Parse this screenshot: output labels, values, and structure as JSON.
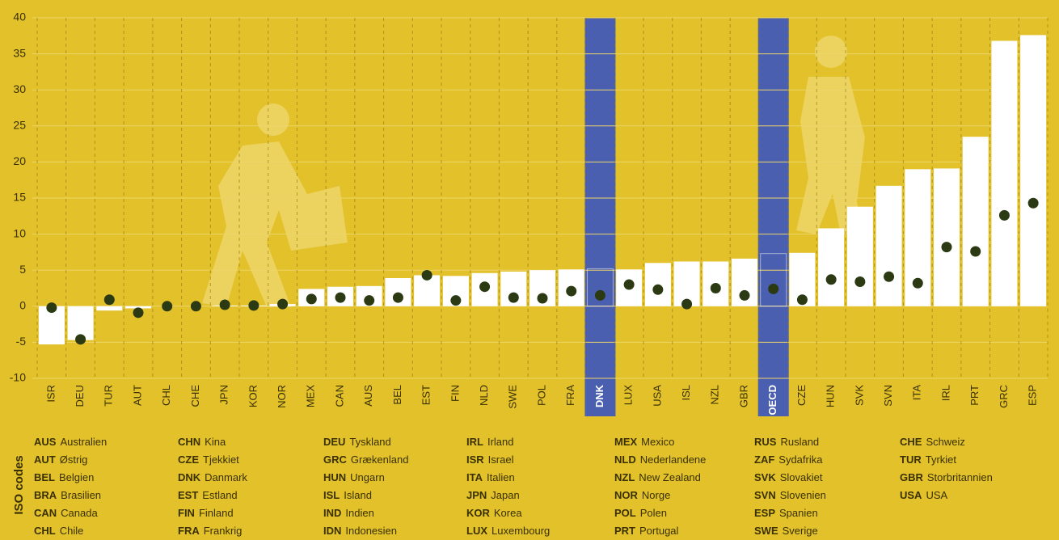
{
  "chart_data": {
    "type": "bar",
    "categories": [
      "ISR",
      "DEU",
      "TUR",
      "AUT",
      "CHL",
      "CHE",
      "JPN",
      "KOR",
      "NOR",
      "MEX",
      "CAN",
      "AUS",
      "BEL",
      "EST",
      "FIN",
      "NLD",
      "SWE",
      "POL",
      "FRA",
      "DNK",
      "LUX",
      "USA",
      "ISL",
      "NZL",
      "GBR",
      "OECD",
      "CZE",
      "HUN",
      "SVK",
      "SVN",
      "ITA",
      "IRL",
      "PRT",
      "GRC",
      "ESP"
    ],
    "series": [
      {
        "type": "bar",
        "color": "#ffffff",
        "values": [
          -5.3,
          -4.7,
          -0.6,
          -0.3,
          0,
          0,
          0.1,
          0.1,
          0.3,
          2.4,
          2.7,
          2.8,
          3.9,
          4.3,
          4.2,
          4.6,
          4.8,
          5.0,
          5.1,
          5.2,
          5.1,
          6.0,
          6.2,
          6.2,
          6.6,
          7.3,
          7.4,
          10.8,
          13.8,
          16.7,
          19.0,
          19.1,
          23.5,
          36.8,
          37.6
        ]
      },
      {
        "type": "dot",
        "color": "#2b3a12",
        "values": [
          -0.2,
          -4.6,
          0.9,
          -0.9,
          0,
          0,
          0.2,
          0.1,
          0.3,
          1.0,
          1.2,
          0.8,
          1.2,
          4.3,
          0.8,
          2.7,
          1.2,
          1.1,
          2.1,
          1.5,
          3.0,
          2.3,
          0.3,
          2.5,
          1.5,
          2.4,
          0.9,
          3.7,
          3.4,
          4.1,
          3.2,
          8.2,
          7.6,
          12.6,
          14.3
        ]
      }
    ],
    "highlighted": [
      "DNK",
      "OECD"
    ],
    "highlight_color": "#4a5fb0",
    "ylim": [
      -10,
      40
    ],
    "yticks": [
      -10,
      -5,
      0,
      5,
      10,
      15,
      20,
      25,
      30,
      35,
      40
    ],
    "grid": true
  },
  "iso_codes": {
    "title": "ISO codes",
    "columns": [
      [
        {
          "code": "AUS",
          "name": "Australien"
        },
        {
          "code": "AUT",
          "name": "Østrig"
        },
        {
          "code": "BEL",
          "name": "Belgien"
        },
        {
          "code": "BRA",
          "name": "Brasilien"
        },
        {
          "code": "CAN",
          "name": "Canada"
        },
        {
          "code": "CHL",
          "name": "Chile"
        }
      ],
      [
        {
          "code": "CHN",
          "name": "Kina"
        },
        {
          "code": "CZE",
          "name": "Tjekkiet"
        },
        {
          "code": "DNK",
          "name": "Danmark"
        },
        {
          "code": "EST",
          "name": "Estland"
        },
        {
          "code": "FIN",
          "name": "Finland"
        },
        {
          "code": "FRA",
          "name": "Frankrig"
        }
      ],
      [
        {
          "code": "DEU",
          "name": "Tyskland"
        },
        {
          "code": "GRC",
          "name": "Grækenland"
        },
        {
          "code": "HUN",
          "name": "Ungarn"
        },
        {
          "code": "ISL",
          "name": "Island"
        },
        {
          "code": "IND",
          "name": "Indien"
        },
        {
          "code": "IDN",
          "name": "Indonesien"
        }
      ],
      [
        {
          "code": "IRL",
          "name": "Irland"
        },
        {
          "code": "ISR",
          "name": "Israel"
        },
        {
          "code": "ITA",
          "name": "Italien"
        },
        {
          "code": "JPN",
          "name": "Japan"
        },
        {
          "code": "KOR",
          "name": "Korea"
        },
        {
          "code": "LUX",
          "name": "Luxembourg"
        }
      ],
      [
        {
          "code": "MEX",
          "name": "Mexico"
        },
        {
          "code": "NLD",
          "name": "Nederlandene"
        },
        {
          "code": "NZL",
          "name": "New Zealand"
        },
        {
          "code": "NOR",
          "name": "Norge"
        },
        {
          "code": "POL",
          "name": "Polen"
        },
        {
          "code": "PRT",
          "name": "Portugal"
        }
      ],
      [
        {
          "code": "RUS",
          "name": "Rusland"
        },
        {
          "code": "ZAF",
          "name": "Sydafrika"
        },
        {
          "code": "SVK",
          "name": "Slovakiet"
        },
        {
          "code": "SVN",
          "name": "Slovenien"
        },
        {
          "code": "ESP",
          "name": "Spanien"
        },
        {
          "code": "SWE",
          "name": "Sverige"
        }
      ],
      [
        {
          "code": "CHE",
          "name": "Schweiz"
        },
        {
          "code": "TUR",
          "name": "Tyrkiet"
        },
        {
          "code": "GBR",
          "name": "Storbritannien"
        },
        {
          "code": "USA",
          "name": "USA"
        }
      ]
    ]
  }
}
